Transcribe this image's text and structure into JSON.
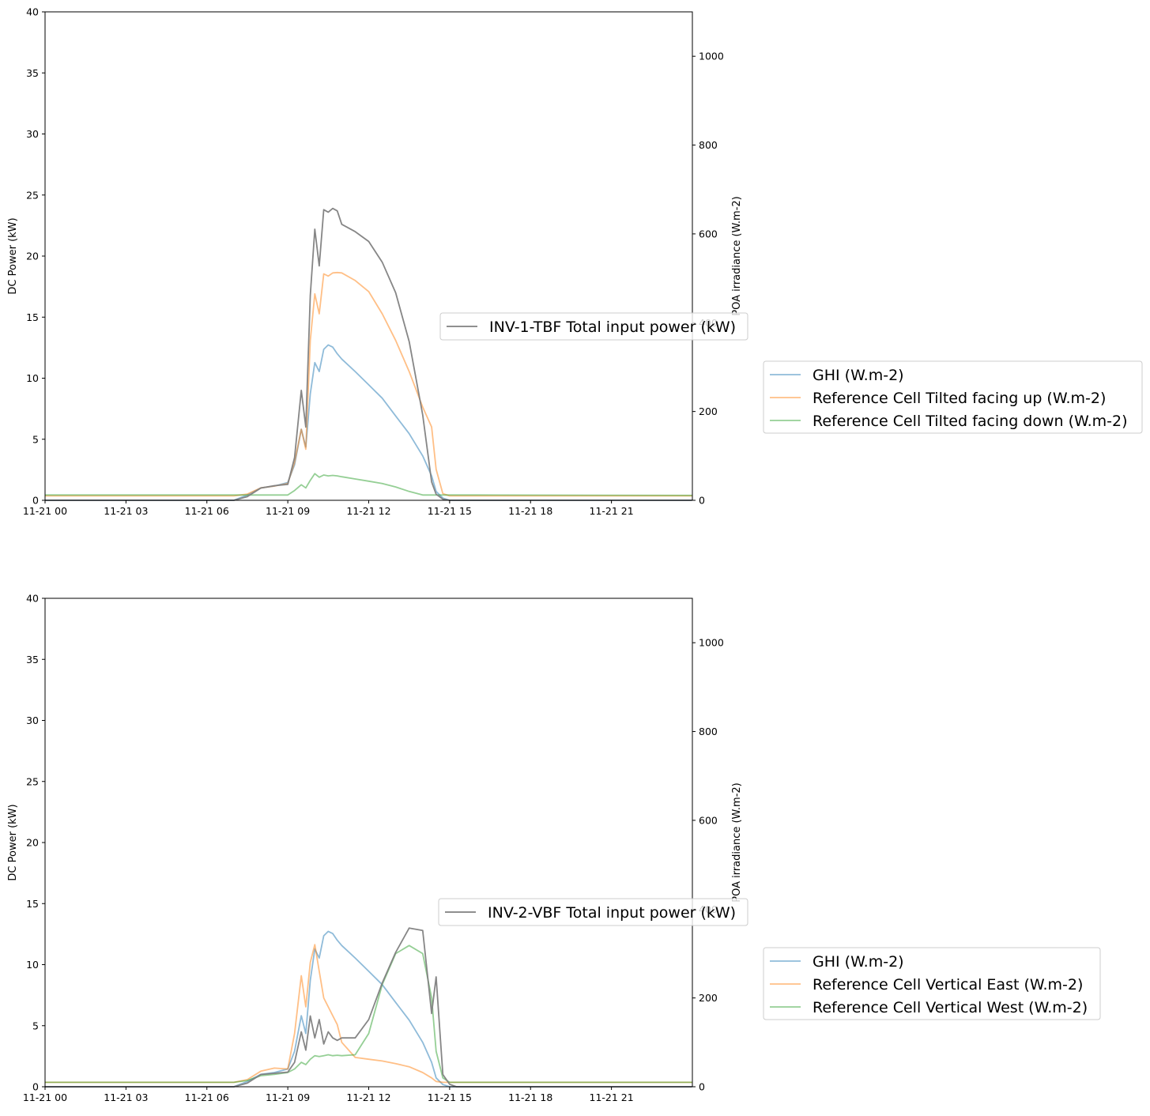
{
  "chart_data": [
    {
      "type": "line",
      "panel": "top",
      "x": [
        "11-21 00:00",
        "11-21 07:00",
        "11-21 07:30",
        "11-21 08:00",
        "11-21 08:30",
        "11-21 09:00",
        "11-21 09:15",
        "11-21 09:30",
        "11-21 09:40",
        "11-21 09:50",
        "11-21 10:00",
        "11-21 10:10",
        "11-21 10:20",
        "11-21 10:30",
        "11-21 10:40",
        "11-21 10:50",
        "11-21 11:00",
        "11-21 11:30",
        "11-21 12:00",
        "11-21 12:30",
        "11-21 13:00",
        "11-21 13:30",
        "11-21 14:00",
        "11-21 14:20",
        "11-21 14:30",
        "11-21 14:45",
        "11-21 15:00",
        "11-21 15:15",
        "11-21 16:00",
        "11-21 23:59"
      ],
      "x_ticks": [
        "11-21 00",
        "11-21 03",
        "11-21 06",
        "11-21 09",
        "11-21 12",
        "11-21 15",
        "11-21 18",
        "11-21 21"
      ],
      "ylabel": "DC Power (kW)",
      "ylim": [
        0,
        40
      ],
      "y_ticks": [
        "0",
        "5",
        "10",
        "15",
        "20",
        "25",
        "30",
        "35",
        "40"
      ],
      "y2label": "POA irradiance (W.m-2)",
      "y2lim": [
        0,
        1100
      ],
      "y2_ticks": [
        "0",
        "200",
        "400",
        "600",
        "800",
        "1000"
      ],
      "left_series": [
        {
          "name": "INV-1-TBF Total input power (kW)",
          "color": "#7f7f7f",
          "axis": "left",
          "values": [
            0,
            0,
            0.3,
            1.0,
            1.2,
            1.3,
            3.5,
            9.0,
            6.0,
            16.8,
            22.2,
            19.2,
            23.8,
            23.6,
            23.9,
            23.7,
            22.6,
            22.0,
            21.2,
            19.5,
            17.0,
            13.0,
            7.0,
            1.5,
            0.5,
            0.1,
            0,
            0,
            0,
            0
          ]
        }
      ],
      "right_series": [
        {
          "name": "GHI (W.m-2)",
          "color": "#1f77b4",
          "values": [
            0,
            0,
            12,
            28,
            32,
            40,
            80,
            160,
            120,
            240,
            310,
            290,
            340,
            350,
            345,
            330,
            318,
            290,
            260,
            230,
            190,
            150,
            100,
            55,
            20,
            5,
            0,
            0,
            0,
            0
          ]
        },
        {
          "name": "Reference Cell Tilted facing up (W.m-2)",
          "color": "#ff7f0e",
          "values": [
            10,
            10,
            14,
            28,
            32,
            38,
            85,
            160,
            115,
            360,
            465,
            420,
            510,
            505,
            512,
            513,
            512,
            495,
            470,
            420,
            360,
            290,
            210,
            165,
            70,
            15,
            10,
            10,
            10,
            10
          ]
        },
        {
          "name": "Reference Cell Tilted facing down (W.m-2)",
          "color": "#2ca02c",
          "values": [
            12,
            12,
            12,
            12,
            12,
            12,
            22,
            35,
            28,
            45,
            60,
            52,
            57,
            55,
            56,
            55,
            53,
            48,
            43,
            38,
            30,
            20,
            12,
            12,
            12,
            12,
            12,
            12,
            12,
            11
          ]
        }
      ],
      "legend_left": [
        "INV-1-TBF Total input power (kW)"
      ],
      "legend_right": [
        "GHI (W.m-2)",
        "Reference Cell Tilted facing up (W.m-2)",
        "Reference Cell Tilted facing down (W.m-2)"
      ],
      "grid": false
    },
    {
      "type": "line",
      "panel": "bottom",
      "x": [
        "11-21 00:00",
        "11-21 07:00",
        "11-21 07:30",
        "11-21 08:00",
        "11-21 08:30",
        "11-21 09:00",
        "11-21 09:15",
        "11-21 09:30",
        "11-21 09:40",
        "11-21 09:50",
        "11-21 10:00",
        "11-21 10:10",
        "11-21 10:20",
        "11-21 10:30",
        "11-21 10:40",
        "11-21 10:50",
        "11-21 11:00",
        "11-21 11:30",
        "11-21 12:00",
        "11-21 12:30",
        "11-21 13:00",
        "11-21 13:30",
        "11-21 14:00",
        "11-21 14:20",
        "11-21 14:30",
        "11-21 14:45",
        "11-21 15:00",
        "11-21 15:15",
        "11-21 16:00",
        "11-21 23:59"
      ],
      "x_ticks": [
        "11-21 00",
        "11-21 03",
        "11-21 06",
        "11-21 09",
        "11-21 12",
        "11-21 15",
        "11-21 18",
        "11-21 21"
      ],
      "ylabel": "DC Power (kW)",
      "ylim": [
        0,
        40
      ],
      "y_ticks": [
        "0",
        "5",
        "10",
        "15",
        "20",
        "25",
        "30",
        "35",
        "40"
      ],
      "y2label": "POA irradiance (W.m-2)",
      "y2lim": [
        0,
        1100
      ],
      "y2_ticks": [
        "0",
        "200",
        "400",
        "600",
        "800",
        "1000"
      ],
      "left_series": [
        {
          "name": "INV-2-VBF Total input power (kW)",
          "color": "#7f7f7f",
          "axis": "left",
          "values": [
            0,
            0,
            0.3,
            1.0,
            1.1,
            1.2,
            2.0,
            4.5,
            3.0,
            5.8,
            4.0,
            5.5,
            3.5,
            4.5,
            4.0,
            3.8,
            4.0,
            4.0,
            5.5,
            8.5,
            11.0,
            13.0,
            12.8,
            6.0,
            9.0,
            1.0,
            0.2,
            0,
            0,
            0
          ]
        }
      ],
      "right_series": [
        {
          "name": "GHI (W.m-2)",
          "color": "#1f77b4",
          "values": [
            0,
            0,
            12,
            28,
            32,
            40,
            80,
            160,
            120,
            240,
            310,
            290,
            340,
            350,
            345,
            330,
            318,
            290,
            260,
            230,
            190,
            150,
            100,
            55,
            20,
            5,
            0,
            0,
            0,
            0
          ]
        },
        {
          "name": "Reference Cell Vertical East (W.m-2)",
          "color": "#ff7f0e",
          "values": [
            10,
            10,
            16,
            35,
            42,
            40,
            120,
            250,
            180,
            280,
            320,
            260,
            200,
            180,
            160,
            140,
            100,
            66,
            62,
            58,
            52,
            45,
            32,
            20,
            12,
            10,
            10,
            10,
            10,
            10
          ]
        },
        {
          "name": "Reference Cell Vertical West (W.m-2)",
          "color": "#2ca02c",
          "values": [
            10,
            10,
            14,
            25,
            28,
            32,
            40,
            55,
            50,
            62,
            70,
            68,
            70,
            72,
            70,
            71,
            70,
            72,
            120,
            230,
            300,
            318,
            300,
            200,
            80,
            20,
            10,
            10,
            10,
            10
          ]
        }
      ],
      "legend_left": [
        "INV-2-VBF Total input power (kW)"
      ],
      "legend_right": [
        "GHI (W.m-2)",
        "Reference Cell Vertical East (W.m-2)",
        "Reference Cell Vertical West (W.m-2)"
      ],
      "grid": false
    }
  ]
}
